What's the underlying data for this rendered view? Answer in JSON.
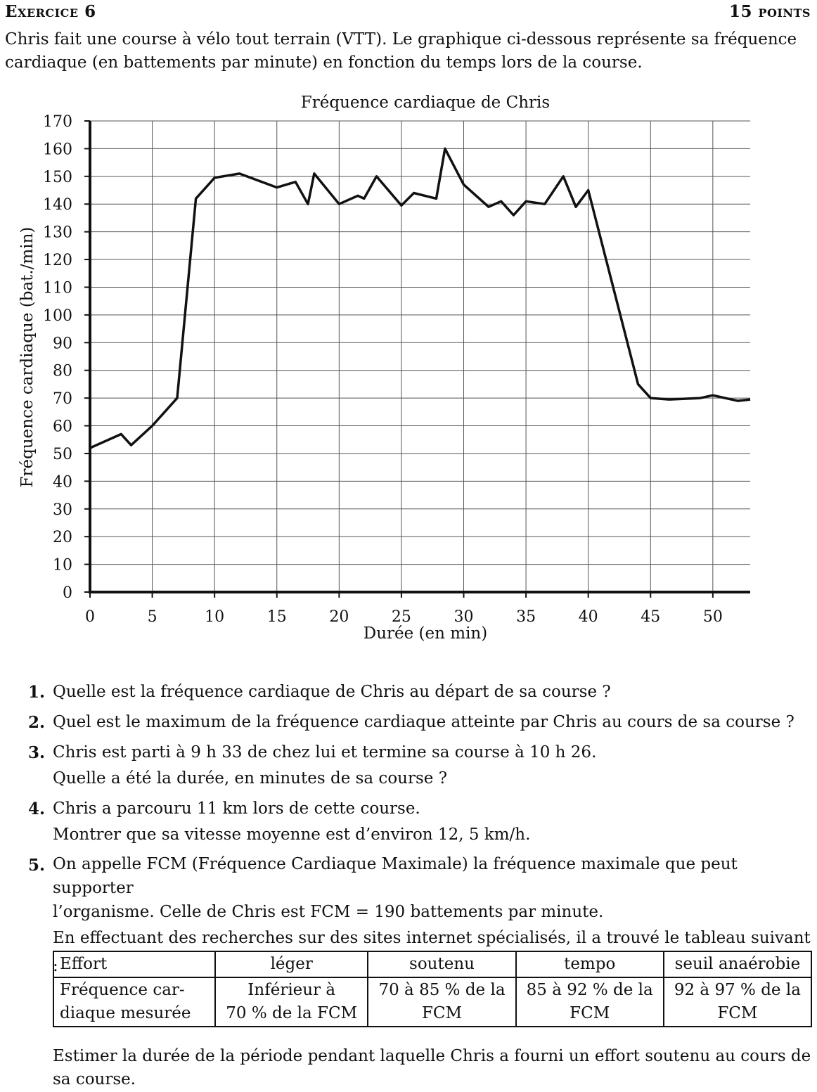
{
  "header": {
    "exercise": "Exercice 6",
    "points": "15 points"
  },
  "intro": "Chris fait une course à vélo tout terrain (VTT). Le graphique ci-dessous représente sa fréquence cardiaque (en battements par minute) en fonction du temps lors de la course.",
  "chart_data": {
    "type": "line",
    "title": "Fréquence cardiaque de Chris",
    "xlabel": "Durée (en min)",
    "ylabel": "Fréquence cardiaque (bat./min)",
    "xlim": [
      0,
      53
    ],
    "ylim": [
      0,
      170
    ],
    "x_ticks": [
      0,
      5,
      10,
      15,
      20,
      25,
      30,
      35,
      40,
      45,
      50
    ],
    "y_ticks": [
      0,
      10,
      20,
      30,
      40,
      50,
      60,
      70,
      80,
      90,
      100,
      110,
      120,
      130,
      140,
      150,
      160,
      170
    ],
    "grid": true,
    "x": [
      0,
      2.5,
      3.3,
      5,
      7,
      8.5,
      10,
      12,
      15,
      16.5,
      17.5,
      18,
      20,
      21.5,
      22,
      23,
      25,
      26,
      27.8,
      28.5,
      30,
      32,
      33,
      34,
      35,
      36.5,
      38,
      39,
      40,
      44,
      45,
      46.5,
      49,
      50,
      52,
      53
    ],
    "y": [
      52,
      57,
      53,
      60,
      70,
      142,
      149.5,
      151,
      146,
      148,
      140,
      151,
      140,
      143,
      142,
      150,
      139.5,
      144,
      142,
      160,
      147,
      139,
      141,
      136,
      141,
      140,
      150,
      139,
      145,
      75,
      70,
      69.5,
      70,
      71,
      69,
      69.5
    ],
    "line_color": "#111111",
    "grid_color": "#555555"
  },
  "questions": [
    {
      "num": "1.",
      "lines": [
        "Quelle est la fréquence cardiaque de Chris au départ de sa course ?"
      ]
    },
    {
      "num": "2.",
      "lines": [
        "Quel est le maximum de la fréquence cardiaque atteinte par Chris au cours de sa course ?"
      ]
    },
    {
      "num": "3.",
      "lines": [
        "Chris est parti à 9 h 33 de chez lui et termine sa course à 10 h 26.",
        "Quelle a été la durée, en minutes de sa course ?"
      ]
    },
    {
      "num": "4.",
      "lines": [
        "Chris a parcouru 11 km lors de cette course.",
        "Montrer que sa vitesse moyenne est d’environ 12, 5 km/h."
      ]
    },
    {
      "num": "5.",
      "lines": [
        "On appelle FCM (Fréquence Cardiaque Maximale) la fréquence maximale que peut supporter",
        "l’organisme. Celle de Chris est FCM = 190 battements par minute.",
        "En effectuant des recherches sur des sites internet spécialisés, il a trouvé le tableau suivant :"
      ]
    }
  ],
  "table": {
    "header": [
      "Effort",
      "léger",
      "soutenu",
      "tempo",
      "seuil anaérobie"
    ],
    "row_label_lines": [
      "Fréquence car-",
      "diaque mesurée"
    ],
    "cells": [
      [
        "Inférieur à",
        "70 % de la FCM"
      ],
      [
        "70 à 85 % de la",
        "FCM"
      ],
      [
        "85 à 92 % de la",
        "FCM"
      ],
      [
        "92 à 97 % de la",
        "FCM"
      ]
    ]
  },
  "final_question": "Estimer la durée de la période pendant laquelle Chris a fourni un effort soutenu au cours de sa course."
}
